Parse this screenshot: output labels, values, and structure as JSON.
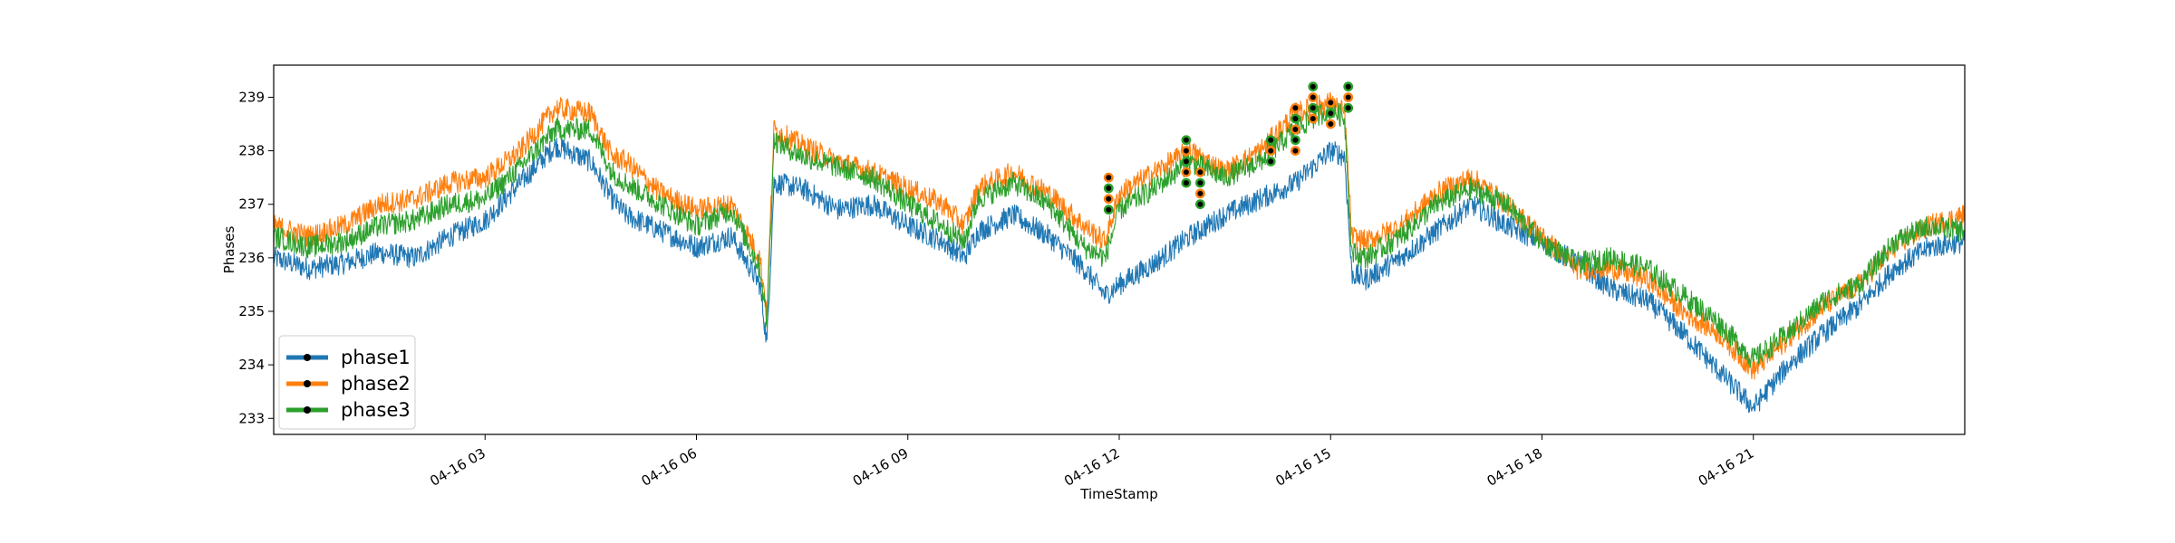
{
  "chart_data": {
    "type": "line",
    "xlabel": "TimeStamp",
    "ylabel": "Phases",
    "xlim_hours": [
      0.0,
      24.0
    ],
    "ylim": [
      232.7,
      239.6
    ],
    "x_ticks": [
      {
        "hour": 3,
        "label": "04-16 03"
      },
      {
        "hour": 6,
        "label": "04-16 06"
      },
      {
        "hour": 9,
        "label": "04-16 09"
      },
      {
        "hour": 12,
        "label": "04-16 12"
      },
      {
        "hour": 15,
        "label": "04-16 15"
      },
      {
        "hour": 18,
        "label": "04-16 18"
      },
      {
        "hour": 21,
        "label": "04-16 21"
      }
    ],
    "y_ticks": [
      233,
      234,
      235,
      236,
      237,
      238,
      239
    ],
    "legend": {
      "placement": "lower-left"
    },
    "series": [
      {
        "name": "phase1",
        "color": "#1f77b4",
        "points": [
          [
            0,
            236.0
          ],
          [
            0.5,
            235.8
          ],
          [
            1,
            235.9
          ],
          [
            1.5,
            236.1
          ],
          [
            2,
            236.0
          ],
          [
            2.5,
            236.4
          ],
          [
            3,
            236.7
          ],
          [
            3.5,
            237.4
          ],
          [
            4,
            238.1
          ],
          [
            4.5,
            237.8
          ],
          [
            4.8,
            237.1
          ],
          [
            5,
            236.8
          ],
          [
            5.5,
            236.5
          ],
          [
            6,
            236.2
          ],
          [
            6.5,
            236.4
          ],
          [
            6.9,
            235.5
          ],
          [
            7.0,
            234.4
          ],
          [
            7.1,
            237.4
          ],
          [
            7.5,
            237.3
          ],
          [
            8,
            236.9
          ],
          [
            8.5,
            237.0
          ],
          [
            9,
            236.6
          ],
          [
            9.5,
            236.3
          ],
          [
            9.8,
            236.0
          ],
          [
            10,
            236.5
          ],
          [
            10.5,
            236.8
          ],
          [
            11,
            236.4
          ],
          [
            11.5,
            235.8
          ],
          [
            11.8,
            235.3
          ],
          [
            12,
            235.5
          ],
          [
            12.5,
            235.9
          ],
          [
            13,
            236.4
          ],
          [
            13.5,
            236.8
          ],
          [
            14,
            237.1
          ],
          [
            14.5,
            237.4
          ],
          [
            15,
            238.0
          ],
          [
            15.2,
            237.9
          ],
          [
            15.3,
            235.7
          ],
          [
            15.5,
            235.6
          ],
          [
            16,
            236.0
          ],
          [
            16.5,
            236.5
          ],
          [
            17,
            237.0
          ],
          [
            17.5,
            236.6
          ],
          [
            18,
            236.3
          ],
          [
            18.5,
            235.9
          ],
          [
            19,
            235.4
          ],
          [
            19.5,
            235.2
          ],
          [
            20,
            234.6
          ],
          [
            20.5,
            233.9
          ],
          [
            21,
            233.2
          ],
          [
            21.5,
            234.0
          ],
          [
            22,
            234.6
          ],
          [
            22.5,
            235.1
          ],
          [
            23,
            235.8
          ],
          [
            23.5,
            236.2
          ],
          [
            24,
            236.3
          ]
        ]
      },
      {
        "name": "phase2",
        "color": "#ff7f0e",
        "points": [
          [
            0,
            236.6
          ],
          [
            0.5,
            236.4
          ],
          [
            1,
            236.6
          ],
          [
            1.5,
            237.0
          ],
          [
            2,
            237.1
          ],
          [
            2.5,
            237.4
          ],
          [
            3,
            237.5
          ],
          [
            3.5,
            238.0
          ],
          [
            4,
            238.8
          ],
          [
            4.5,
            238.7
          ],
          [
            4.8,
            237.9
          ],
          [
            5,
            237.8
          ],
          [
            5.5,
            237.2
          ],
          [
            6,
            236.9
          ],
          [
            6.5,
            237.0
          ],
          [
            6.9,
            236.0
          ],
          [
            7.0,
            235.0
          ],
          [
            7.1,
            238.4
          ],
          [
            7.5,
            238.1
          ],
          [
            8,
            237.8
          ],
          [
            8.5,
            237.6
          ],
          [
            9,
            237.3
          ],
          [
            9.5,
            237.0
          ],
          [
            9.8,
            236.6
          ],
          [
            10,
            237.3
          ],
          [
            10.5,
            237.6
          ],
          [
            11,
            237.2
          ],
          [
            11.5,
            236.6
          ],
          [
            11.8,
            236.3
          ],
          [
            12,
            237.2
          ],
          [
            12.5,
            237.6
          ],
          [
            13,
            238.0
          ],
          [
            13.5,
            237.6
          ],
          [
            14,
            238.0
          ],
          [
            14.5,
            238.7
          ],
          [
            15,
            238.9
          ],
          [
            15.2,
            238.7
          ],
          [
            15.3,
            236.4
          ],
          [
            15.5,
            236.3
          ],
          [
            16,
            236.6
          ],
          [
            16.5,
            237.2
          ],
          [
            17,
            237.5
          ],
          [
            17.5,
            237.0
          ],
          [
            18,
            236.4
          ],
          [
            18.5,
            235.8
          ],
          [
            19,
            235.8
          ],
          [
            19.5,
            235.6
          ],
          [
            20,
            235.0
          ],
          [
            20.5,
            234.6
          ],
          [
            21,
            233.9
          ],
          [
            21.5,
            234.5
          ],
          [
            22,
            235.1
          ],
          [
            22.5,
            235.5
          ],
          [
            23,
            236.2
          ],
          [
            23.5,
            236.6
          ],
          [
            24,
            236.8
          ]
        ]
      },
      {
        "name": "phase3",
        "color": "#2ca02c",
        "points": [
          [
            0,
            236.4
          ],
          [
            0.5,
            236.2
          ],
          [
            1,
            236.3
          ],
          [
            1.5,
            236.6
          ],
          [
            2,
            236.7
          ],
          [
            2.5,
            237.0
          ],
          [
            3,
            237.1
          ],
          [
            3.5,
            237.7
          ],
          [
            4,
            238.4
          ],
          [
            4.5,
            238.4
          ],
          [
            4.8,
            237.6
          ],
          [
            5,
            237.4
          ],
          [
            5.5,
            237.0
          ],
          [
            6,
            236.6
          ],
          [
            6.5,
            236.9
          ],
          [
            6.9,
            235.8
          ],
          [
            7.0,
            234.8
          ],
          [
            7.1,
            238.2
          ],
          [
            7.5,
            237.9
          ],
          [
            8,
            237.7
          ],
          [
            8.5,
            237.5
          ],
          [
            9,
            237.0
          ],
          [
            9.5,
            236.6
          ],
          [
            9.8,
            236.3
          ],
          [
            10,
            237.1
          ],
          [
            10.5,
            237.4
          ],
          [
            11,
            237.0
          ],
          [
            11.5,
            236.2
          ],
          [
            11.8,
            236.0
          ],
          [
            12,
            236.9
          ],
          [
            12.5,
            237.3
          ],
          [
            13,
            237.8
          ],
          [
            13.5,
            237.5
          ],
          [
            14,
            237.8
          ],
          [
            14.5,
            238.4
          ],
          [
            15,
            238.8
          ],
          [
            15.2,
            238.6
          ],
          [
            15.3,
            236.1
          ],
          [
            15.5,
            236.0
          ],
          [
            16,
            236.4
          ],
          [
            16.5,
            237.0
          ],
          [
            17,
            237.3
          ],
          [
            17.5,
            237.0
          ],
          [
            18,
            236.3
          ],
          [
            18.5,
            235.9
          ],
          [
            19,
            236.0
          ],
          [
            19.5,
            235.8
          ],
          [
            20,
            235.3
          ],
          [
            20.5,
            234.8
          ],
          [
            21,
            234.1
          ],
          [
            21.5,
            234.6
          ],
          [
            22,
            235.2
          ],
          [
            22.5,
            235.5
          ],
          [
            23,
            236.3
          ],
          [
            23.5,
            236.6
          ],
          [
            24,
            236.5
          ]
        ]
      }
    ],
    "markers": [
      {
        "hour": 11.85,
        "values": [
          237.5,
          237.3,
          237.1,
          236.9
        ]
      },
      {
        "hour": 12.95,
        "values": [
          238.2,
          238.0,
          237.8,
          237.6,
          237.4
        ]
      },
      {
        "hour": 13.15,
        "values": [
          237.6,
          237.4,
          237.2,
          237.0
        ]
      },
      {
        "hour": 14.15,
        "values": [
          238.2,
          238.0,
          237.8
        ]
      },
      {
        "hour": 14.5,
        "values": [
          238.8,
          238.6,
          238.4,
          238.2,
          238.0
        ]
      },
      {
        "hour": 14.75,
        "values": [
          239.2,
          239.0,
          238.8,
          238.6
        ]
      },
      {
        "hour": 15.0,
        "values": [
          238.9,
          238.7,
          238.5
        ]
      },
      {
        "hour": 15.25,
        "values": [
          239.2,
          239.0,
          238.8
        ]
      }
    ]
  }
}
